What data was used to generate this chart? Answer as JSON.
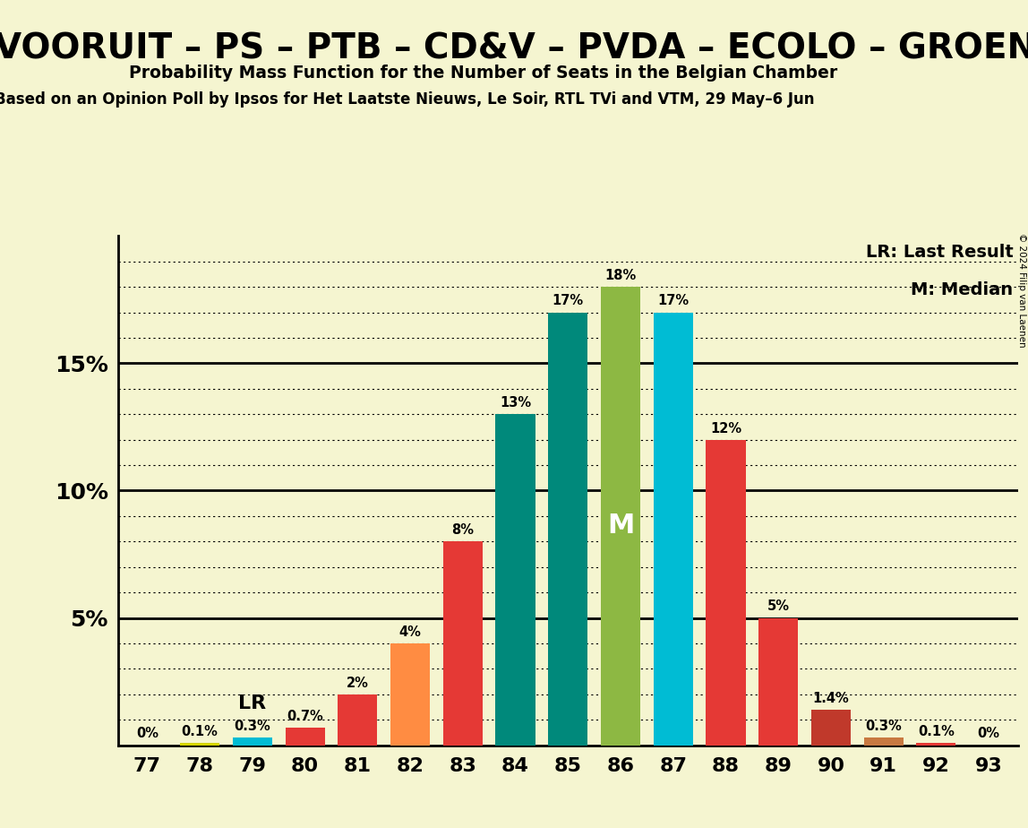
{
  "seats": [
    77,
    78,
    79,
    80,
    81,
    82,
    83,
    84,
    85,
    86,
    87,
    88,
    89,
    90,
    91,
    92,
    93
  ],
  "values": [
    0.0,
    0.1,
    0.3,
    0.7,
    2.0,
    4.0,
    8.0,
    13.0,
    17.0,
    18.0,
    17.0,
    12.0,
    5.0,
    1.4,
    0.3,
    0.1,
    0.0
  ],
  "bar_colors": [
    "#c8c800",
    "#d4d400",
    "#00bcd4",
    "#e53935",
    "#e53935",
    "#ff8c42",
    "#e53935",
    "#00897b",
    "#00897b",
    "#8db843",
    "#00bcd4",
    "#e53935",
    "#e53935",
    "#c0392b",
    "#c87941",
    "#e53935",
    "#c03020"
  ],
  "last_result_seat": 79,
  "median_seat": 86,
  "title_line1": "ORUIT – PS – PTB – CD&V – PVDA – ECOLO – GROEN",
  "title_line2": "Probability Mass Function for the Number of Seats in the Belgian Chamber",
  "subtitle": "on an Opinion Poll by Ipsos for Het Laatste Nieuws, Le Soir, RTL TVi and VTM, 29 May–6 Jun",
  "subtitle_prefix": "Based ",
  "background_color": "#f5f5d0",
  "ylim_max": 20,
  "copyright": "© 2024 Filip van Laenen",
  "label_format": {
    "77": "0%",
    "78": "0.1%",
    "79": "0.3%",
    "80": "0.7%",
    "81": "2%",
    "82": "4%",
    "83": "8%",
    "84": "13%",
    "85": "17%",
    "86": "18%",
    "87": "17%",
    "88": "12%",
    "89": "5%",
    "90": "1.4%",
    "91": "0.3%",
    "92": "0.1%",
    "93": "0%"
  }
}
